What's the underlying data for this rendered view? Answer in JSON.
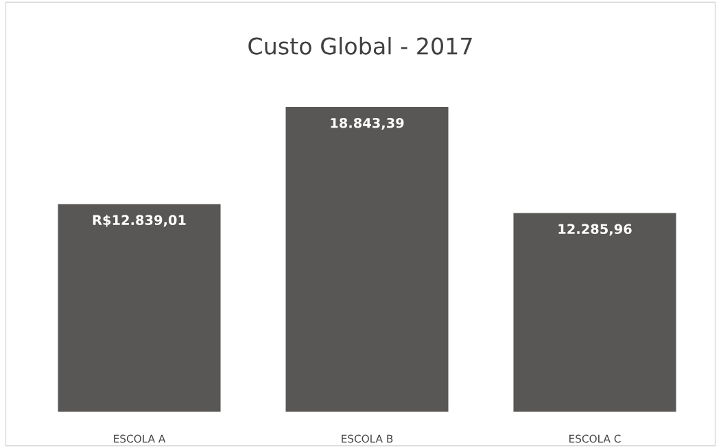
{
  "chart_data": {
    "type": "bar",
    "title": "Custo Global - 2017",
    "categories": [
      "ESCOLA A",
      "ESCOLA B",
      "ESCOLA C"
    ],
    "values": [
      12839.01,
      18843.39,
      12285.96
    ],
    "value_labels": [
      "R$12.839,01",
      "18.843,39",
      "12.285,96"
    ],
    "color": "#595755",
    "grid": false,
    "legend": false
  }
}
